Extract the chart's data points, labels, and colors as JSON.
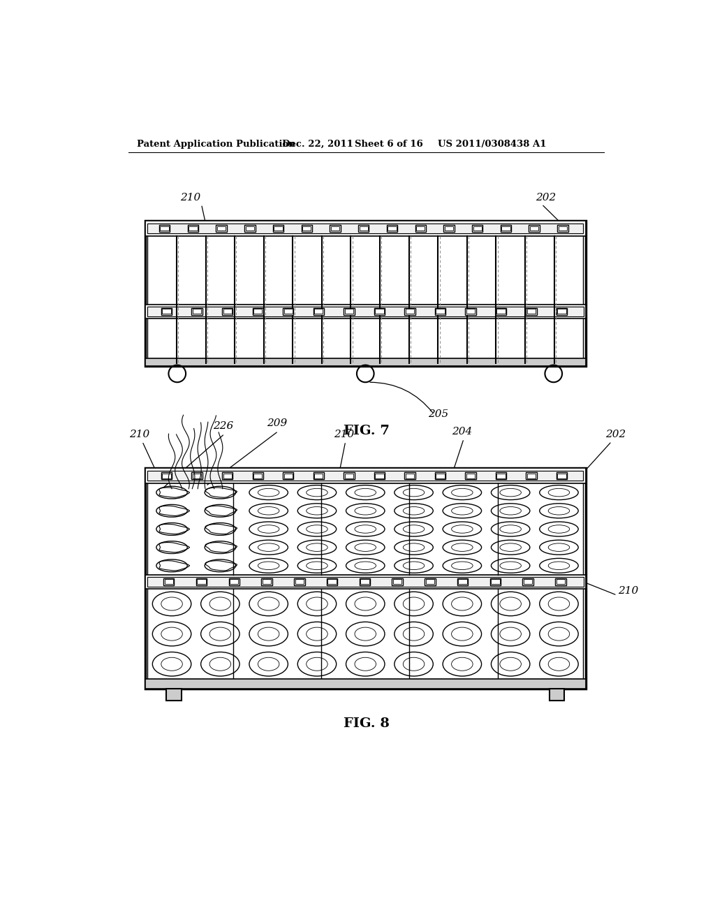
{
  "bg_color": "#ffffff",
  "header_text": "Patent Application Publication",
  "header_date": "Dec. 22, 2011",
  "header_sheet": "Sheet 6 of 16",
  "header_patent": "US 2011/0308438 A1",
  "fig7_label": "FIG. 7",
  "fig8_label": "FIG. 8"
}
